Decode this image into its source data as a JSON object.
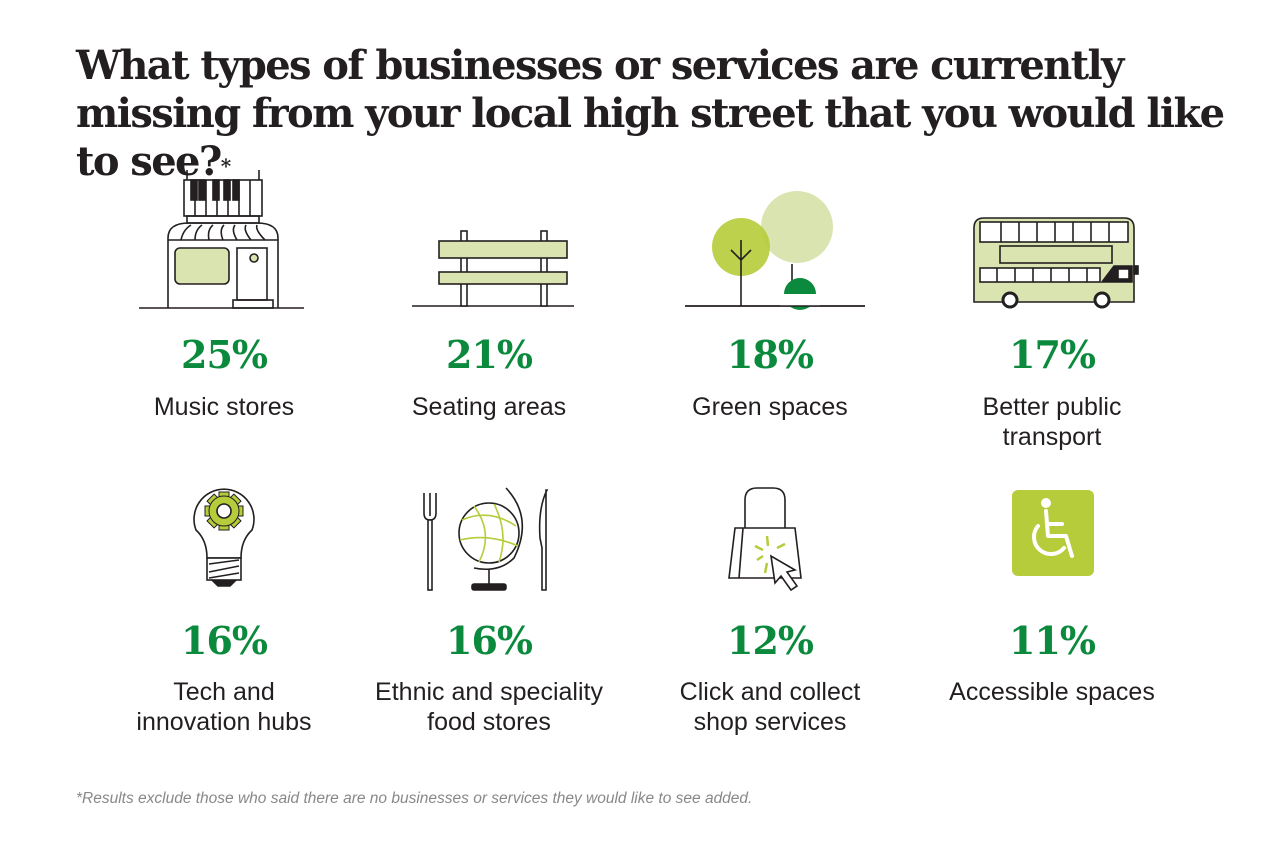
{
  "title": "What types of businesses or services are currently missing from your local high street that you would like to see?",
  "title_mark": "*",
  "footnote": "*Results exclude those who said there are no businesses or services they would like to see added.",
  "colors": {
    "percent": "#0b8a3e",
    "light_green": "#d9e4b1",
    "lime": "#b6cc3a",
    "ink": "#231f20"
  },
  "items": [
    {
      "percent": "25%",
      "label": "Music stores",
      "icon": "music-store-icon"
    },
    {
      "percent": "21%",
      "label": "Seating areas",
      "icon": "bench-icon"
    },
    {
      "percent": "18%",
      "label": "Green spaces",
      "icon": "trees-icon"
    },
    {
      "percent": "17%",
      "label": "Better public transport",
      "icon": "bus-icon"
    },
    {
      "percent": "16%",
      "label": "Tech and innovation hubs",
      "icon": "lightbulb-gear-icon"
    },
    {
      "percent": "16%",
      "label": "Ethnic and speciality food stores",
      "icon": "globe-cutlery-icon"
    },
    {
      "percent": "12%",
      "label": "Click and collect shop services",
      "icon": "shopping-bag-cursor-icon"
    },
    {
      "percent": "11%",
      "label": "Accessible spaces",
      "icon": "wheelchair-icon"
    }
  ],
  "chart_data": {
    "type": "table",
    "title": "What types of businesses or services are currently missing from your local high street that you would like to see?",
    "categories": [
      "Music stores",
      "Seating areas",
      "Green spaces",
      "Better public transport",
      "Tech and innovation hubs",
      "Ethnic and speciality food stores",
      "Click and collect shop services",
      "Accessible spaces"
    ],
    "values": [
      25,
      21,
      18,
      17,
      16,
      16,
      12,
      11
    ],
    "unit": "%"
  }
}
